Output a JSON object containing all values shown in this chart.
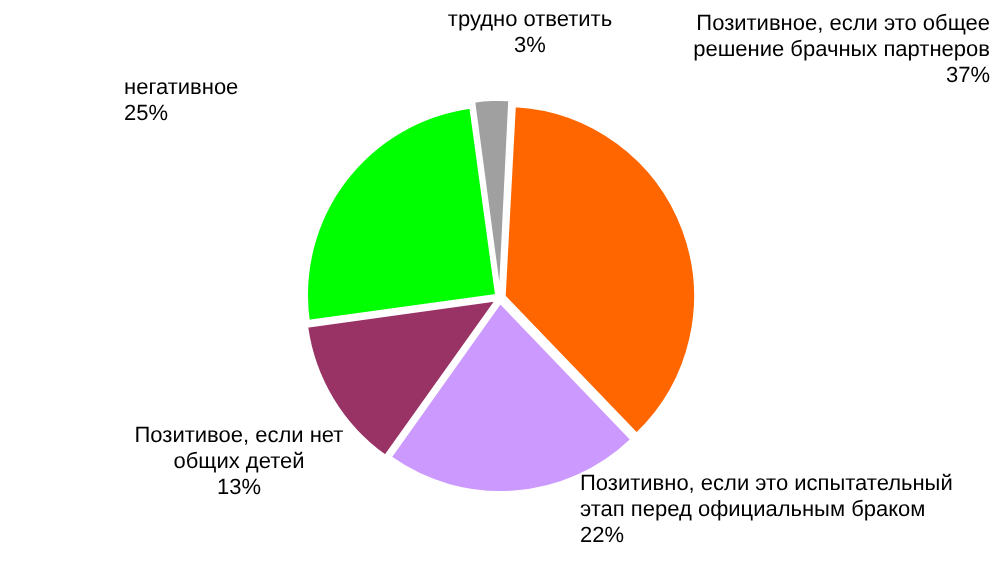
{
  "chart_data": {
    "type": "pie",
    "categories": [
      "Позитивное, если это общее решение брачных партнеров",
      "Позитивно, если это испытательный этап перед официальным браком",
      "Позитивое, если нет общих детей",
      "негативное",
      "трудно ответить"
    ],
    "values": [
      37,
      22,
      13,
      25,
      3
    ],
    "value_labels": [
      "37%",
      "22%",
      "13%",
      "25%",
      "3%"
    ],
    "colors": [
      "#ff6600",
      "#cc99ff",
      "#993366",
      "#00ff00",
      "#a0a0a0"
    ]
  }
}
